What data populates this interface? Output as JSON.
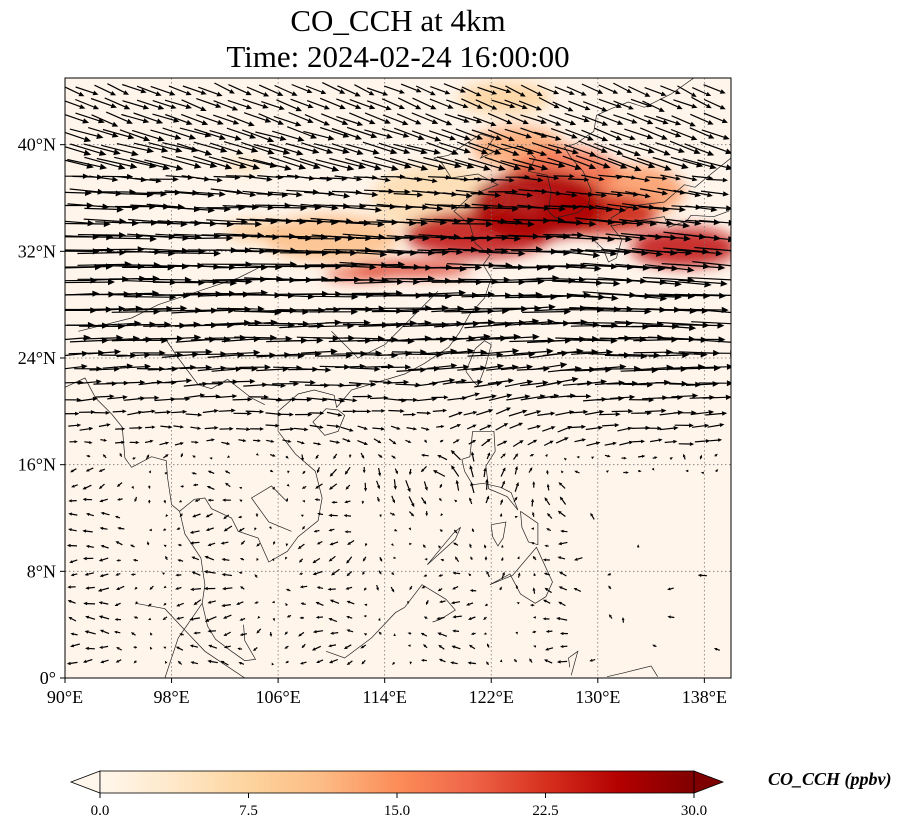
{
  "title": {
    "line1": "CO_CCH at 4km",
    "line2": "Time: 2024-02-24 16:00:00"
  },
  "map": {
    "variable": "CO_CCH",
    "level": "4km",
    "lon_range": [
      90,
      140
    ],
    "lat_range": [
      0,
      45
    ],
    "gridlines": true,
    "background_color": "#fff5eb",
    "x_ticks": [
      {
        "value": 90,
        "label": "90°E"
      },
      {
        "value": 98,
        "label": "98°E"
      },
      {
        "value": 106,
        "label": "106°E"
      },
      {
        "value": 114,
        "label": "114°E"
      },
      {
        "value": 122,
        "label": "122°E"
      },
      {
        "value": 130,
        "label": "130°E"
      },
      {
        "value": 138,
        "label": "138°E"
      }
    ],
    "y_ticks": [
      {
        "value": 0,
        "label": "0°"
      },
      {
        "value": 8,
        "label": "8°N"
      },
      {
        "value": 16,
        "label": "16°N"
      },
      {
        "value": 24,
        "label": "24°N"
      },
      {
        "value": 32,
        "label": "32°N"
      },
      {
        "value": 40,
        "label": "40°N"
      }
    ],
    "plume": [
      {
        "lon": 125.5,
        "lat": 35.5,
        "rlon": 5,
        "rlat": 2.6,
        "value": 27
      },
      {
        "lon": 121,
        "lat": 33.3,
        "rlon": 5.5,
        "rlat": 1.8,
        "value": 25
      },
      {
        "lon": 130,
        "lat": 34.8,
        "rlon": 4.5,
        "rlat": 1.6,
        "value": 24
      },
      {
        "lon": 136.5,
        "lat": 32.3,
        "rlon": 4,
        "rlat": 1.5,
        "value": 25
      },
      {
        "lon": 116,
        "lat": 30.7,
        "rlon": 4.5,
        "rlat": 0.6,
        "value": 22
      },
      {
        "lon": 112,
        "lat": 30.3,
        "rlon": 2.5,
        "rlat": 0.5,
        "value": 20
      },
      {
        "lon": 127.5,
        "lat": 38,
        "rlon": 4,
        "rlat": 1.8,
        "value": 18
      },
      {
        "lon": 124,
        "lat": 39.8,
        "rlon": 3.5,
        "rlat": 1.6,
        "value": 13
      },
      {
        "lon": 110,
        "lat": 33,
        "rlon": 5,
        "rlat": 1.8,
        "value": 11
      },
      {
        "lon": 104.5,
        "lat": 33.5,
        "rlon": 2.5,
        "rlat": 0.8,
        "value": 9
      },
      {
        "lon": 103.5,
        "lat": 38.4,
        "rlon": 1.5,
        "rlat": 0.4,
        "value": 7
      },
      {
        "lon": 123,
        "lat": 43.5,
        "rlon": 3.5,
        "rlat": 1.2,
        "value": 8
      },
      {
        "lon": 132.5,
        "lat": 36.5,
        "rlon": 4,
        "rlat": 2,
        "value": 14
      },
      {
        "lon": 118,
        "lat": 36,
        "rlon": 5,
        "rlat": 2.5,
        "value": 6
      }
    ],
    "wind": {
      "jet_axis_lat_at_90E": 30.5,
      "jet_axis_lat_at_140E": 28.5,
      "jet_speed": 1.0,
      "vortex_center": {
        "lon": 118,
        "lat": 15
      },
      "arrow_color": "#000000"
    }
  },
  "colorbar": {
    "label": "CO_CCH (ppbv)",
    "min": 0,
    "max": 30,
    "extend": "both",
    "ticks": [
      "0.0",
      "7.5",
      "15.0",
      "22.5",
      "30.0"
    ],
    "colormap": "OrRd",
    "colors": [
      "#fff7ec",
      "#fee8c8",
      "#fdd49e",
      "#fdbb84",
      "#fc8d59",
      "#ef6548",
      "#d7301f",
      "#b30000",
      "#7f0000"
    ]
  }
}
